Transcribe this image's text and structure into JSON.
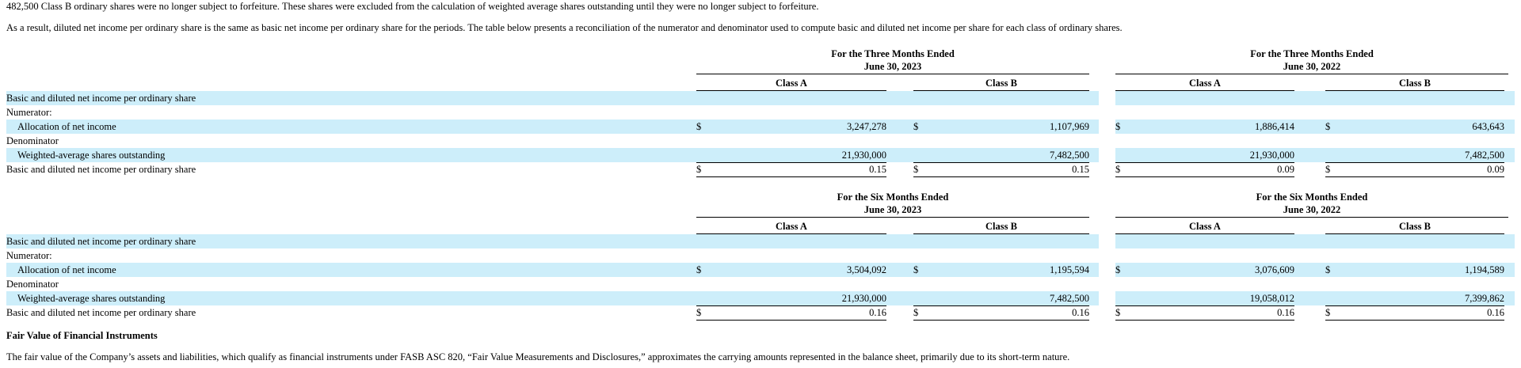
{
  "intro": {
    "line1": "482,500 Class B ordinary shares were no longer subject to forfeiture. These shares were excluded from the calculation of weighted average shares outstanding until they were no longer subject to forfeiture.",
    "line2": "As a result, diluted net income per ordinary share is the same as basic net income per ordinary share for the periods. The table below presents a reconciliation of the numerator and denominator used to compute basic and diluted net income per share for each class of ordinary shares."
  },
  "tables": [
    {
      "periods": [
        {
          "line1": "For the Three Months Ended",
          "line2": "June 30, 2023"
        },
        {
          "line1": "For the Three Months Ended",
          "line2": "June 30, 2022"
        }
      ],
      "classes": [
        "Class A",
        "Class B",
        "Class A",
        "Class B"
      ],
      "rows": {
        "section": "Basic and diluted net income per ordinary share",
        "numerator": "Numerator:",
        "allocation": {
          "label": "Allocation of net income",
          "values": [
            "3,247,278",
            "1,107,969",
            "1,886,414",
            "643,643"
          ]
        },
        "denominator": "Denominator",
        "weighted": {
          "label": "Weighted-average shares outstanding",
          "values": [
            "21,930,000",
            "7,482,500",
            "21,930,000",
            "7,482,500"
          ]
        },
        "eps": {
          "label": "Basic and diluted net income per ordinary share",
          "values": [
            "0.15",
            "0.15",
            "0.09",
            "0.09"
          ]
        }
      }
    },
    {
      "periods": [
        {
          "line1": "For the Six Months Ended",
          "line2": "June 30, 2023"
        },
        {
          "line1": "For the Six Months Ended",
          "line2": "June 30, 2022"
        }
      ],
      "classes": [
        "Class A",
        "Class B",
        "Class A",
        "Class B"
      ],
      "rows": {
        "section": "Basic and diluted net income per ordinary share",
        "numerator": "Numerator:",
        "allocation": {
          "label": "Allocation of net income",
          "values": [
            "3,504,092",
            "1,195,594",
            "3,076,609",
            "1,194,589"
          ]
        },
        "denominator": "Denominator",
        "weighted": {
          "label": "Weighted-average shares outstanding",
          "values": [
            "21,930,000",
            "7,482,500",
            "19,058,012",
            "7,399,862"
          ]
        },
        "eps": {
          "label": "Basic and diluted net income per ordinary share",
          "values": [
            "0.16",
            "0.16",
            "0.16",
            "0.16"
          ]
        }
      }
    }
  ],
  "currency_symbol": "$",
  "fair_value": {
    "heading": "Fair Value of Financial Instruments",
    "text": "The fair value of the Company’s assets and liabilities, which qualify as financial instruments under FASB ASC 820, “Fair Value Measurements and Disclosures,” approximates the carrying amounts represented in the balance sheet, primarily due to its short-term nature."
  }
}
